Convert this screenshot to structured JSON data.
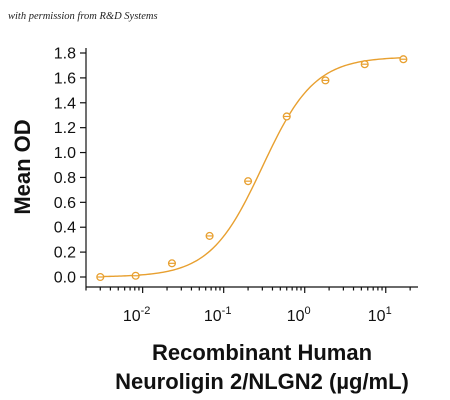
{
  "caption": "with permission from R&D Systems",
  "chart_data": {
    "type": "scatter",
    "title": "",
    "xlabel_line1": "Recombinant Human",
    "xlabel_line2": "Neuroligin 2/NLGN2 (µg/mL)",
    "ylabel": "Mean OD",
    "xscale": "log",
    "xlim": [
      0.002,
      25
    ],
    "ylim": [
      0,
      1.8
    ],
    "yticks": [
      0.0,
      0.2,
      0.4,
      0.6,
      0.8,
      1.0,
      1.2,
      1.4,
      1.6,
      1.8
    ],
    "ytick_labels": [
      "0.0",
      "0.2",
      "0.4",
      "0.6",
      "0.8",
      "1.0",
      "1.2",
      "1.4",
      "1.6",
      "1.8"
    ],
    "xticks": [
      {
        "base": "10",
        "exp": "-2",
        "value": 0.01
      },
      {
        "base": "10",
        "exp": "-1",
        "value": 0.1
      },
      {
        "base": "10",
        "exp": "0",
        "value": 1
      },
      {
        "base": "10",
        "exp": "1",
        "value": 10
      }
    ],
    "series": [
      {
        "x": [
          0.003,
          0.0082,
          0.023,
          0.067,
          0.2,
          0.6,
          1.8,
          5.5,
          16.5
        ],
        "y": [
          0.0,
          0.01,
          0.11,
          0.33,
          0.77,
          1.29,
          1.58,
          1.71,
          1.75
        ],
        "color": "#e8a030",
        "fit": "4PL"
      }
    ],
    "marker_color": "#e8a030",
    "grid": false
  }
}
